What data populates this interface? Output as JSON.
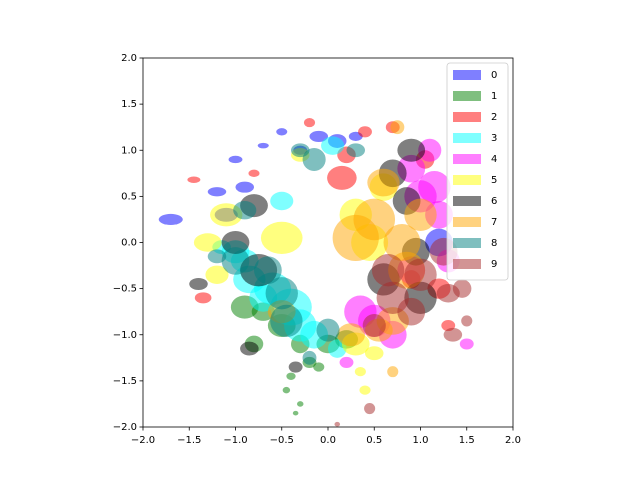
{
  "chart_data": {
    "type": "ellipse-scatter",
    "xlim": [
      -2.0,
      2.0
    ],
    "ylim": [
      -2.0,
      2.0
    ],
    "xticks": [
      {
        "value": -2.0,
        "label": "−2.0"
      },
      {
        "value": -1.5,
        "label": "−1.5"
      },
      {
        "value": -1.0,
        "label": "−1.0"
      },
      {
        "value": -0.5,
        "label": "−0.5"
      },
      {
        "value": 0.0,
        "label": "0.0"
      },
      {
        "value": 0.5,
        "label": "0.5"
      },
      {
        "value": 1.0,
        "label": "1.0"
      },
      {
        "value": 1.5,
        "label": "1.5"
      },
      {
        "value": 2.0,
        "label": "2.0"
      }
    ],
    "yticks": [
      {
        "value": -2.0,
        "label": "−2.0"
      },
      {
        "value": -1.5,
        "label": "−1.5"
      },
      {
        "value": -1.0,
        "label": "−1.0"
      },
      {
        "value": -0.5,
        "label": "−0.5"
      },
      {
        "value": 0.0,
        "label": "0.0"
      },
      {
        "value": 0.5,
        "label": "0.5"
      },
      {
        "value": 1.0,
        "label": "1.0"
      },
      {
        "value": 1.5,
        "label": "1.5"
      },
      {
        "value": 2.0,
        "label": "2.0"
      }
    ],
    "legend": "upper right",
    "alpha": 0.5,
    "series": [
      {
        "name": "0",
        "color": "#0000ff",
        "x": [
          -1.7,
          -1.2,
          -1.0,
          -0.9,
          -0.7,
          -0.5,
          -0.3,
          -0.1,
          0.1,
          0.3,
          -1.1,
          1.2
        ],
        "y": [
          0.25,
          0.55,
          0.9,
          0.6,
          1.05,
          1.2,
          1.0,
          1.15,
          1.1,
          1.15,
          0.3,
          0.0
        ],
        "width": [
          0.26,
          0.2,
          0.15,
          0.2,
          0.12,
          0.12,
          0.15,
          0.2,
          0.2,
          0.15,
          0.25,
          0.3
        ],
        "height": [
          0.12,
          0.1,
          0.08,
          0.12,
          0.06,
          0.08,
          0.1,
          0.12,
          0.15,
          0.1,
          0.15,
          0.3
        ]
      },
      {
        "name": "1",
        "color": "#008000",
        "x": [
          -0.9,
          -0.7,
          -0.5,
          -0.3,
          -0.2,
          0.0,
          -0.8,
          -0.4,
          -0.1,
          0.2,
          -0.45,
          -0.3,
          -0.35
        ],
        "y": [
          -0.7,
          -0.75,
          -0.9,
          -1.1,
          -1.3,
          -1.1,
          -1.1,
          -1.45,
          -1.35,
          -1.05,
          -1.6,
          -1.75,
          -1.85
        ],
        "width": [
          0.3,
          0.25,
          0.3,
          0.2,
          0.15,
          0.25,
          0.2,
          0.1,
          0.12,
          0.25,
          0.08,
          0.07,
          0.06
        ],
        "height": [
          0.25,
          0.2,
          0.25,
          0.2,
          0.12,
          0.2,
          0.18,
          0.08,
          0.1,
          0.2,
          0.07,
          0.06,
          0.05
        ]
      },
      {
        "name": "2",
        "color": "#ff0000",
        "x": [
          0.15,
          -1.45,
          -1.35,
          0.2,
          0.7,
          1.2,
          1.05,
          0.4,
          -0.8,
          0.9,
          1.3,
          -0.2
        ],
        "y": [
          0.7,
          0.68,
          -0.6,
          0.95,
          1.25,
          -0.5,
          0.9,
          1.2,
          0.75,
          -0.4,
          -0.9,
          1.3
        ],
        "width": [
          0.32,
          0.14,
          0.18,
          0.2,
          0.15,
          0.25,
          0.2,
          0.15,
          0.12,
          0.2,
          0.15,
          0.12
        ],
        "height": [
          0.26,
          0.07,
          0.12,
          0.18,
          0.13,
          0.22,
          0.2,
          0.12,
          0.08,
          0.2,
          0.12,
          0.1
        ]
      },
      {
        "name": "3",
        "color": "#00ffff",
        "x": [
          -1.0,
          -0.85,
          -0.6,
          -0.4,
          -0.3,
          -0.9,
          -0.7,
          -0.15,
          0.05,
          -1.15,
          -0.5,
          0.1
        ],
        "y": [
          -0.1,
          -0.4,
          -0.5,
          -0.7,
          -0.9,
          -0.2,
          -0.6,
          -1.0,
          1.05,
          -0.05,
          0.45,
          -1.15
        ],
        "width": [
          0.3,
          0.35,
          0.4,
          0.45,
          0.35,
          0.3,
          0.3,
          0.3,
          0.25,
          0.2,
          0.25,
          0.2
        ],
        "height": [
          0.25,
          0.3,
          0.35,
          0.4,
          0.35,
          0.25,
          0.3,
          0.3,
          0.2,
          0.15,
          0.2,
          0.2
        ]
      },
      {
        "name": "4",
        "color": "#ff00ff",
        "x": [
          0.9,
          1.0,
          1.2,
          1.1,
          0.35,
          0.5,
          0.7,
          0.9,
          1.3,
          1.5,
          0.2,
          1.15
        ],
        "y": [
          0.8,
          0.5,
          0.3,
          1.0,
          -0.75,
          -0.85,
          -1.0,
          -0.3,
          -0.2,
          -1.1,
          -1.3,
          0.6
        ],
        "width": [
          0.3,
          0.35,
          0.3,
          0.25,
          0.35,
          0.35,
          0.3,
          0.3,
          0.25,
          0.15,
          0.15,
          0.35
        ],
        "height": [
          0.3,
          0.35,
          0.3,
          0.25,
          0.35,
          0.35,
          0.3,
          0.3,
          0.25,
          0.12,
          0.12,
          0.35
        ]
      },
      {
        "name": "5",
        "color": "#ffff00",
        "x": [
          -1.3,
          -1.1,
          -0.5,
          0.3,
          0.45,
          0.6,
          0.35,
          0.4,
          -1.2,
          0.5,
          0.3,
          -0.3
        ],
        "y": [
          0.0,
          0.3,
          0.05,
          0.3,
          0.0,
          0.6,
          -1.4,
          -1.6,
          -0.35,
          -1.2,
          -1.1,
          0.95
        ],
        "width": [
          0.3,
          0.35,
          0.45,
          0.35,
          0.4,
          0.3,
          0.12,
          0.12,
          0.25,
          0.2,
          0.3,
          0.2
        ],
        "height": [
          0.2,
          0.25,
          0.35,
          0.35,
          0.4,
          0.3,
          0.1,
          0.1,
          0.2,
          0.15,
          0.25,
          0.15
        ]
      },
      {
        "name": "6",
        "color": "#000000",
        "x": [
          0.9,
          0.7,
          -0.8,
          -1.0,
          -0.75,
          1.0,
          0.6,
          0.95,
          -1.4,
          -0.35,
          -0.85,
          0.85
        ],
        "y": [
          1.0,
          0.75,
          0.4,
          0.0,
          -0.3,
          -0.6,
          -0.4,
          -0.1,
          -0.45,
          -1.35,
          -1.15,
          0.45
        ],
        "width": [
          0.3,
          0.3,
          0.3,
          0.3,
          0.4,
          0.35,
          0.35,
          0.3,
          0.2,
          0.15,
          0.2,
          0.3
        ],
        "height": [
          0.25,
          0.3,
          0.25,
          0.25,
          0.35,
          0.35,
          0.35,
          0.3,
          0.13,
          0.12,
          0.15,
          0.3
        ]
      },
      {
        "name": "7",
        "color": "#ffa500",
        "x": [
          0.5,
          0.8,
          0.6,
          0.85,
          0.3,
          0.7,
          1.0,
          0.25,
          0.55,
          0.7,
          0.75,
          -0.5
        ],
        "y": [
          0.25,
          0.0,
          0.65,
          -0.3,
          0.05,
          -0.85,
          0.3,
          -1.0,
          -0.95,
          -1.4,
          1.25,
          -0.75
        ],
        "width": [
          0.45,
          0.4,
          0.35,
          0.4,
          0.5,
          0.35,
          0.35,
          0.3,
          0.3,
          0.12,
          0.15,
          0.3
        ],
        "height": [
          0.45,
          0.4,
          0.3,
          0.4,
          0.5,
          0.3,
          0.35,
          0.25,
          0.25,
          0.12,
          0.15,
          0.25
        ]
      },
      {
        "name": "8",
        "color": "#008080",
        "x": [
          -1.0,
          -0.9,
          -0.15,
          -0.45,
          -0.5,
          0.0,
          -0.3,
          -1.2,
          -0.2,
          0.3,
          -0.65
        ],
        "y": [
          -0.2,
          0.35,
          0.9,
          -0.85,
          -0.55,
          -0.95,
          1.0,
          -0.15,
          -1.25,
          1.0,
          -0.3
        ],
        "width": [
          0.3,
          0.25,
          0.25,
          0.35,
          0.35,
          0.25,
          0.2,
          0.2,
          0.15,
          0.2,
          0.3
        ],
        "height": [
          0.3,
          0.2,
          0.25,
          0.35,
          0.35,
          0.25,
          0.15,
          0.15,
          0.15,
          0.15,
          0.3
        ]
      },
      {
        "name": "9",
        "color": "#a52a2a",
        "x": [
          1.3,
          1.0,
          0.7,
          1.5,
          1.25,
          0.9,
          1.45,
          0.45,
          0.65,
          0.1,
          0.5,
          1.35
        ],
        "y": [
          -0.55,
          -0.35,
          -0.6,
          -0.85,
          -0.1,
          -0.75,
          -0.5,
          -1.8,
          -0.3,
          -1.97,
          -0.9,
          -1.0
        ],
        "width": [
          0.25,
          0.35,
          0.35,
          0.12,
          0.3,
          0.3,
          0.2,
          0.12,
          0.35,
          0.06,
          0.25,
          0.2
        ],
        "height": [
          0.2,
          0.35,
          0.35,
          0.12,
          0.3,
          0.3,
          0.2,
          0.12,
          0.35,
          0.05,
          0.25,
          0.15
        ]
      }
    ]
  }
}
